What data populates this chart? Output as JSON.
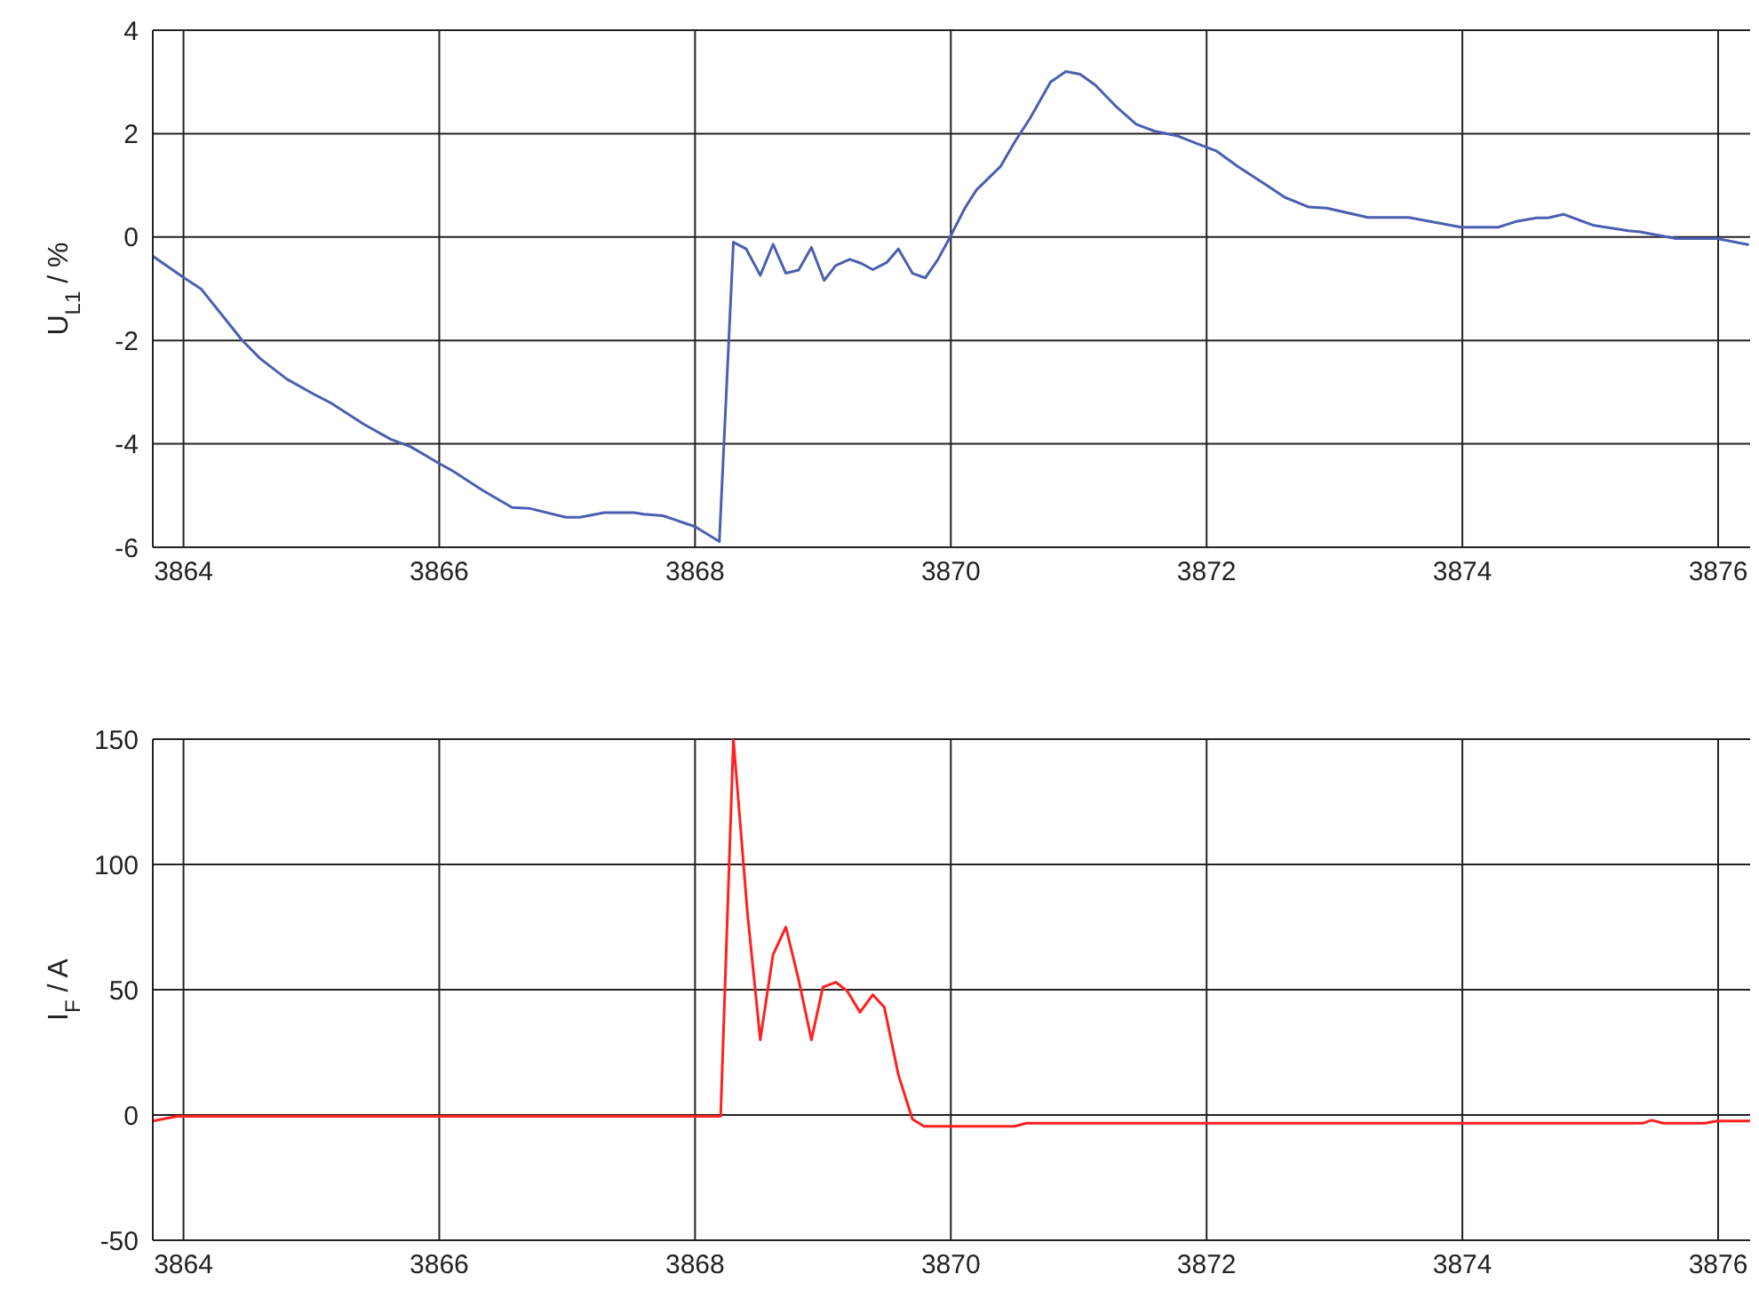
{
  "chart_data": [
    {
      "type": "line",
      "ylabel": "U$_{L1}$ / %",
      "xlim": [
        3863.76,
        3876.25
      ],
      "xticks": [
        3864,
        3866,
        3868,
        3870,
        3872,
        3874,
        3876
      ],
      "ylim": [
        -6,
        4
      ],
      "yticks": [
        -6,
        -4,
        -2,
        0,
        2,
        4
      ],
      "grid": true,
      "marker": "none",
      "line_style": "solid",
      "series": [
        {
          "color": "#4a5fb0",
          "x": [
            3863.76,
            3864,
            3864.14,
            3864.46,
            3864.6,
            3864.81,
            3865.02,
            3865.16,
            3865.41,
            3865.62,
            3865.78,
            3866,
            3866.11,
            3866.34,
            3866.57,
            3866.71,
            3866.99,
            3867.1,
            3867.29,
            3867.52,
            3867.6,
            3867.75,
            3868,
            3868.19,
            3868.3,
            3868.4,
            3868.51,
            3868.61,
            3868.71,
            3868.81,
            3868.91,
            3869.01,
            3869.1,
            3869.21,
            3869.3,
            3869.39,
            3869.5,
            3869.59,
            3869.7,
            3869.8,
            3869.9,
            3869.99,
            3870.11,
            3870.2,
            3870.39,
            3870.5,
            3870.62,
            3870.78,
            3870.9,
            3871.01,
            3871.13,
            3871.29,
            3871.45,
            3871.59,
            3871.78,
            3871.92,
            3872.08,
            3872.24,
            3872.47,
            3872.61,
            3872.8,
            3872.94,
            3873.26,
            3873.58,
            3873.99,
            3874.28,
            3874.42,
            3874.58,
            3874.67,
            3874.79,
            3875.02,
            3875.3,
            3875.39,
            3875.67,
            3875.99,
            3876.24
          ],
          "values": [
            -0.37,
            -0.78,
            -1.01,
            -2.0,
            -2.35,
            -2.75,
            -3.04,
            -3.22,
            -3.62,
            -3.91,
            -4.06,
            -4.38,
            -4.53,
            -4.9,
            -5.23,
            -5.25,
            -5.42,
            -5.42,
            -5.33,
            -5.33,
            -5.36,
            -5.39,
            -5.6,
            -5.89,
            -0.1,
            -0.23,
            -0.74,
            -0.14,
            -0.7,
            -0.64,
            -0.2,
            -0.84,
            -0.55,
            -0.43,
            -0.51,
            -0.63,
            -0.49,
            -0.23,
            -0.7,
            -0.79,
            -0.43,
            -0.02,
            0.56,
            0.91,
            1.37,
            1.84,
            2.3,
            3.0,
            3.2,
            3.15,
            2.94,
            2.53,
            2.18,
            2.05,
            1.95,
            1.81,
            1.66,
            1.37,
            1.0,
            0.77,
            0.58,
            0.56,
            0.38,
            0.38,
            0.19,
            0.19,
            0.3,
            0.37,
            0.37,
            0.44,
            0.23,
            0.12,
            0.1,
            -0.03,
            -0.03,
            -0.15
          ]
        }
      ]
    },
    {
      "type": "line",
      "ylabel": "I$_{F}$ / A",
      "xlim": [
        3863.76,
        3876.25
      ],
      "xticks": [
        3864,
        3866,
        3868,
        3870,
        3872,
        3874,
        3876
      ],
      "ylim": [
        -50,
        150
      ],
      "yticks": [
        -50,
        0,
        50,
        100,
        150
      ],
      "grid": true,
      "marker": "none",
      "line_style": "solid",
      "series": [
        {
          "color": "#ff2020",
          "x": [
            3863.76,
            3863.95,
            3868.2,
            3868.3,
            3868.41,
            3868.51,
            3868.61,
            3868.71,
            3868.81,
            3868.91,
            3869.0,
            3869.1,
            3869.19,
            3869.29,
            3869.39,
            3869.48,
            3869.59,
            3869.7,
            3869.79,
            3870.5,
            3870.59,
            3875.41,
            3875.48,
            3875.57,
            3875.9,
            3875.99,
            3876.25
          ],
          "values": [
            -2.4,
            -0.5,
            -0.5,
            150,
            80.5,
            30,
            64,
            75,
            54,
            30,
            51,
            53,
            49.5,
            41,
            48,
            43,
            16,
            -1.7,
            -4.5,
            -4.5,
            -3.3,
            -3.3,
            -2.1,
            -3.3,
            -3.3,
            -2.4,
            -2.4
          ]
        }
      ]
    }
  ]
}
